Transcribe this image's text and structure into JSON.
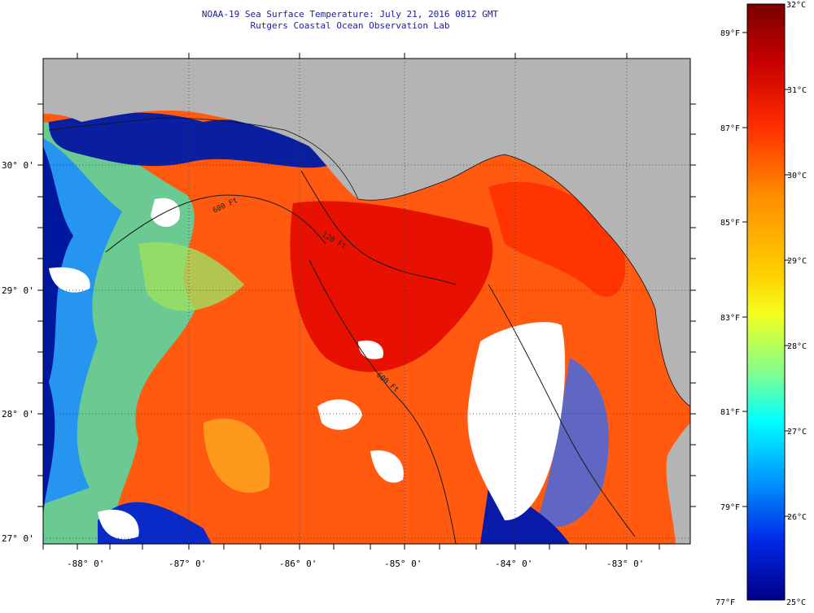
{
  "header": {
    "title": "NOAA-19 Sea Surface Temperature:  July 21, 2016 0812 GMT",
    "subtitle": "Rutgers Coastal Ocean Observation Lab"
  },
  "map": {
    "lon_labels": [
      "-88° 0'",
      "-87° 0'",
      "-86° 0'",
      "-85° 0'",
      "-84° 0'",
      "-83° 0'"
    ],
    "lat_labels": [
      "30° 0'",
      "29° 0'",
      "28° 0'",
      "27° 0'"
    ],
    "contour_labels": [
      "600 Ft",
      "120 Ft",
      "600 Ft"
    ],
    "land_color": "#b4b4b4",
    "no_data_color": "#ffffff"
  },
  "colorbar": {
    "celsius_labels": [
      "32°C",
      "31°C",
      "30°C",
      "29°C",
      "28°C",
      "27°C",
      "26°C",
      "25°C"
    ],
    "fahrenheit_labels": [
      "89°F",
      "87°F",
      "85°F",
      "83°F",
      "81°F",
      "79°F",
      "77°F"
    ],
    "colors": [
      "#800000",
      "#ff0000",
      "#ff8c00",
      "#ffff00",
      "#00e5ff",
      "#0050ff",
      "#00008f"
    ]
  }
}
